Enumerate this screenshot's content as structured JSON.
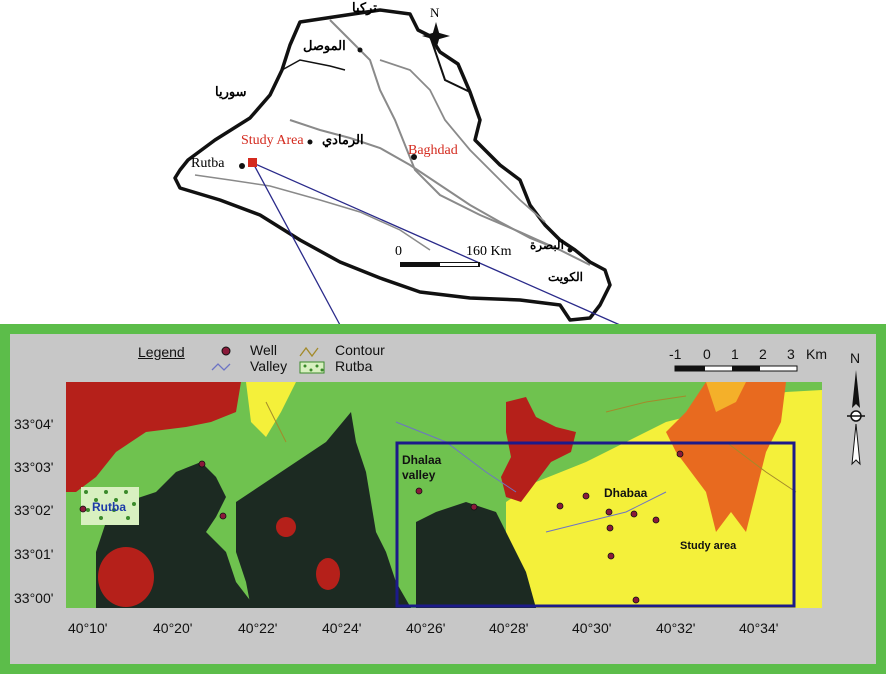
{
  "overview_map": {
    "north_label": "N",
    "rutba_label": "Rutba",
    "study_area_label": "Study Area",
    "baghdad_label": "Baghdad",
    "scale_start": "0",
    "scale_end": "160 Km",
    "arabic_labels": [
      "تركيا",
      "الموصل",
      "سوريا",
      "الرمادي",
      "البصرة",
      "الكويت"
    ],
    "study_color": "#d42a1e"
  },
  "detail_map": {
    "legend_title": "Legend",
    "legend_well": "Well",
    "legend_valley": "Valley",
    "legend_contour": "Contour",
    "legend_rutba": "Rutba",
    "scale_ticks": [
      "-1",
      "0",
      "1",
      "2",
      "3"
    ],
    "scale_unit": "Km",
    "north_label": "N",
    "lat_labels": [
      "33°04'",
      "33°03'",
      "33°02'",
      "33°01'",
      "33°00'"
    ],
    "lon_labels": [
      "40°10'",
      "40°20'",
      "40°22'",
      "40°24'",
      "40°26'",
      "40°28'",
      "40°30'",
      "40°32'",
      "40°34'"
    ],
    "place_dhalaa": "Dhalaa valley",
    "place_dhabaa": "Dhabaa",
    "place_study": "Study area",
    "place_rutba": "Rutba",
    "colors": {
      "frame": "#5cbd4a",
      "background": "#c7c7c7",
      "dark": "#1c2a22",
      "green": "#6fc24f",
      "red": "#b5201a",
      "yellow": "#f4f03a",
      "orange": "#e86a1f",
      "study_box": "#1c1a8a"
    }
  }
}
